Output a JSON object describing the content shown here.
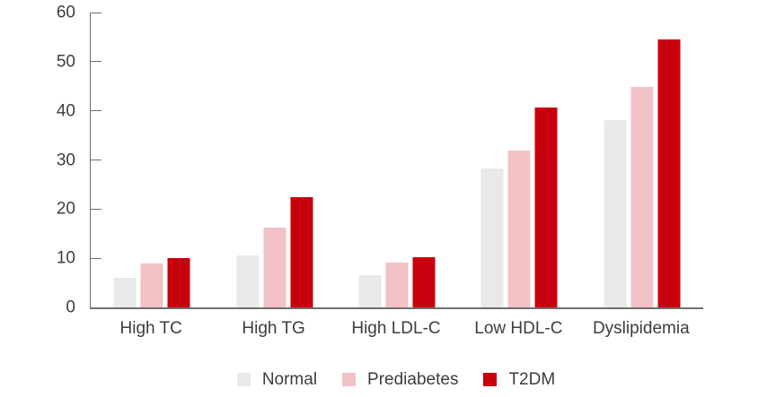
{
  "chart_data": {
    "type": "bar",
    "title": "",
    "xlabel": "",
    "ylabel": "",
    "ylim": [
      0,
      60
    ],
    "yticks": [
      0,
      10,
      20,
      30,
      40,
      50,
      60
    ],
    "grid": false,
    "legend_position": "bottom",
    "categories": [
      "High TC",
      "High TG",
      "High LDL-C",
      "Low HDL-C",
      "Dyslipidemia"
    ],
    "series": [
      {
        "name": "Normal",
        "color": "#e9e9e9",
        "values": [
          6.1,
          10.5,
          6.5,
          28.2,
          38.2
        ]
      },
      {
        "name": "Prediabetes",
        "color": "#f2c2c6",
        "values": [
          8.9,
          16.2,
          9.1,
          31.9,
          44.9
        ]
      },
      {
        "name": "T2DM",
        "color": "#c8000e",
        "values": [
          10.0,
          22.4,
          10.3,
          40.6,
          54.6
        ]
      }
    ]
  },
  "colors": {
    "axis": "#6f6f6f",
    "text": "#3d3d3d",
    "background": "#ffffff"
  }
}
